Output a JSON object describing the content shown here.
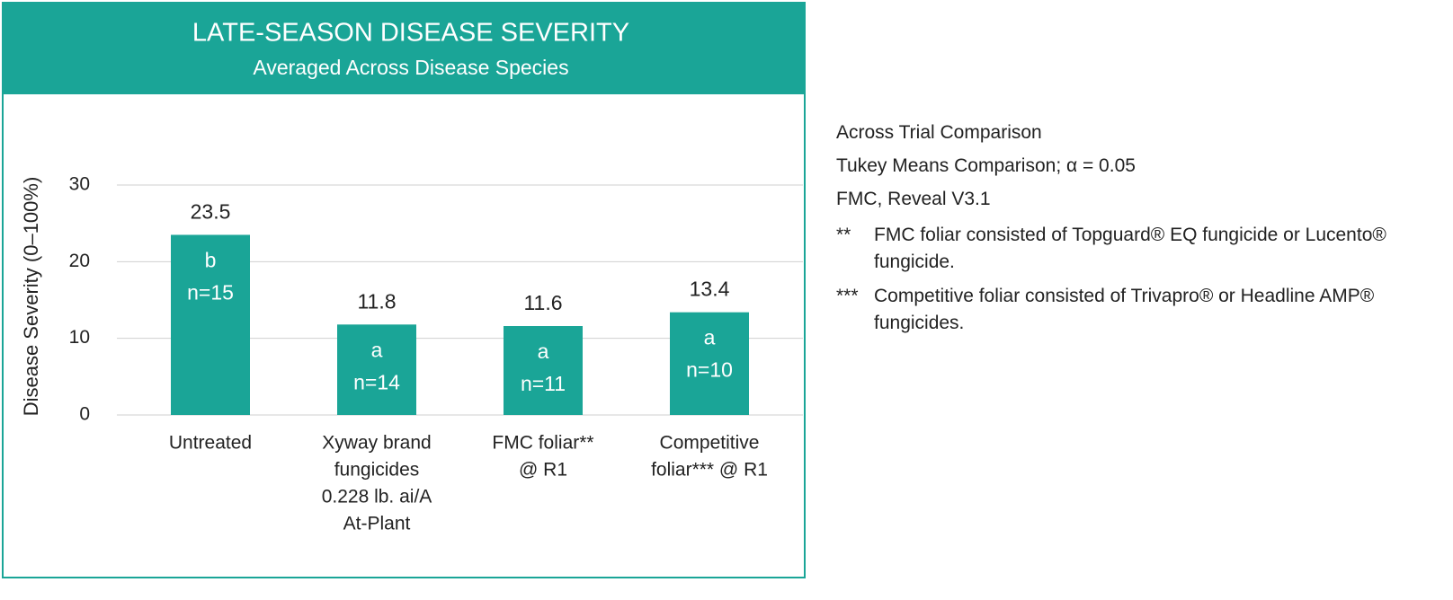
{
  "chart_data": {
    "type": "bar",
    "title": "LATE-SEASON DISEASE SEVERITY",
    "subtitle": "Averaged Across Disease Species",
    "y_label": "Disease Severity (0–100%)",
    "categories": [
      [
        "Untreated"
      ],
      [
        "Xyway brand",
        "fungicides",
        "0.228 lb. ai/A",
        "At-Plant"
      ],
      [
        "FMC foliar**",
        "@ R1"
      ],
      [
        "Competitive",
        "foliar*** @ R1"
      ]
    ],
    "series": [
      {
        "values": [
          23.5,
          11.8,
          11.6,
          13.4
        ],
        "color": "#1aa597",
        "letters": [
          "b",
          "a",
          "a",
          "a"
        ],
        "n_labels": [
          "n=15",
          "n=14",
          "n=11",
          "n=10"
        ]
      }
    ],
    "ylim": [
      0,
      30
    ],
    "yticks": [
      0,
      10,
      20,
      30
    ],
    "grid": true,
    "notes": [
      "Across Trial Comparison",
      "Tukey Means Comparison; α = 0.05",
      "FMC, Reveal V3.1"
    ],
    "footnotes": [
      {
        "marker": "**",
        "text": "FMC foliar consisted of Topguard® EQ fungicide or Lucento® fungicide."
      },
      {
        "marker": "***",
        "text": "Competitive foliar consisted of Trivapro® or Headline AMP® fungicides."
      }
    ]
  }
}
